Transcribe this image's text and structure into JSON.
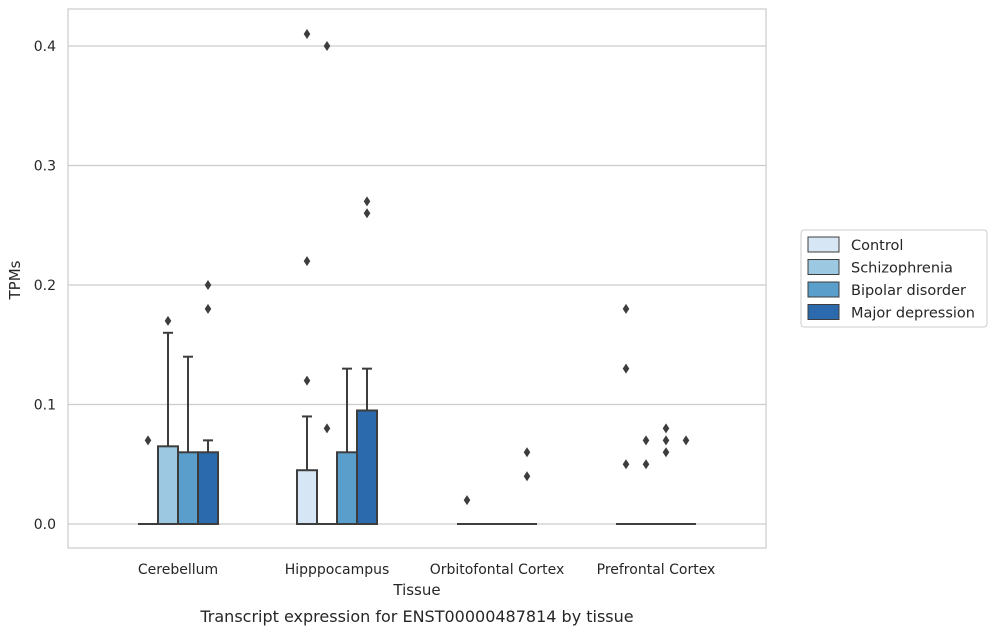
{
  "caption": "Transcript expression for ENST00000487814 by tissue",
  "chart_data": {
    "type": "box",
    "xlabel": "Tissue",
    "ylabel": "TPMs",
    "ylim": [
      -0.02,
      0.43
    ],
    "yticks": [
      "0.0",
      "0.1",
      "0.2",
      "0.3",
      "0.4"
    ],
    "grid": "horizontal",
    "legend_position": "right",
    "palette": [
      "#d6e6f4",
      "#9cc9e1",
      "#5a9fcb",
      "#2a6aad"
    ],
    "categories": [
      "Cerebellum",
      "Hipppocampus",
      "Orbitofontal Cortex",
      "Prefrontal Cortex"
    ],
    "series": [
      {
        "name": "Control",
        "boxes": [
          {
            "q1": 0,
            "median": 0,
            "q3": 0,
            "whislo": 0,
            "whishi": 0,
            "fliers": [
              0.07
            ]
          },
          {
            "q1": 0,
            "median": 0,
            "q3": 0.045,
            "whislo": 0,
            "whishi": 0.09,
            "fliers": [
              0.12,
              0.22,
              0.41
            ]
          },
          {
            "q1": 0,
            "median": 0,
            "q3": 0,
            "whislo": 0,
            "whishi": 0,
            "fliers": [
              0.02
            ]
          },
          {
            "q1": 0,
            "median": 0,
            "q3": 0,
            "whislo": 0,
            "whishi": 0,
            "fliers": [
              0.05,
              0.13,
              0.18
            ]
          }
        ]
      },
      {
        "name": "Schizophrenia",
        "boxes": [
          {
            "q1": 0,
            "median": 0,
            "q3": 0.065,
            "whislo": 0,
            "whishi": 0.16,
            "fliers": [
              0.17
            ]
          },
          {
            "q1": 0,
            "median": 0,
            "q3": 0,
            "whislo": 0,
            "whishi": 0,
            "fliers": [
              0.08,
              0.4
            ]
          },
          {
            "q1": 0,
            "median": 0,
            "q3": 0,
            "whislo": 0,
            "whishi": 0,
            "fliers": []
          },
          {
            "q1": 0,
            "median": 0,
            "q3": 0,
            "whislo": 0,
            "whishi": 0,
            "fliers": [
              0.05,
              0.07
            ]
          }
        ]
      },
      {
        "name": "Bipolar disorder",
        "boxes": [
          {
            "q1": 0,
            "median": 0,
            "q3": 0.06,
            "whislo": 0,
            "whishi": 0.14,
            "fliers": []
          },
          {
            "q1": 0,
            "median": 0,
            "q3": 0.06,
            "whislo": 0,
            "whishi": 0.13,
            "fliers": []
          },
          {
            "q1": 0,
            "median": 0,
            "q3": 0,
            "whislo": 0,
            "whishi": 0,
            "fliers": []
          },
          {
            "q1": 0,
            "median": 0,
            "q3": 0,
            "whislo": 0,
            "whishi": 0,
            "fliers": [
              0.06,
              0.07,
              0.08
            ]
          }
        ]
      },
      {
        "name": "Major depression",
        "boxes": [
          {
            "q1": 0,
            "median": 0,
            "q3": 0.06,
            "whislo": 0,
            "whishi": 0.07,
            "fliers": [
              0.18,
              0.2
            ]
          },
          {
            "q1": 0,
            "median": 0,
            "q3": 0.095,
            "whislo": 0,
            "whishi": 0.13,
            "fliers": [
              0.26,
              0.27
            ]
          },
          {
            "q1": 0,
            "median": 0,
            "q3": 0,
            "whislo": 0,
            "whishi": 0,
            "fliers": [
              0.04,
              0.06
            ]
          },
          {
            "q1": 0,
            "median": 0,
            "q3": 0,
            "whislo": 0,
            "whishi": 0,
            "fliers": [
              0.07
            ]
          }
        ]
      }
    ]
  }
}
